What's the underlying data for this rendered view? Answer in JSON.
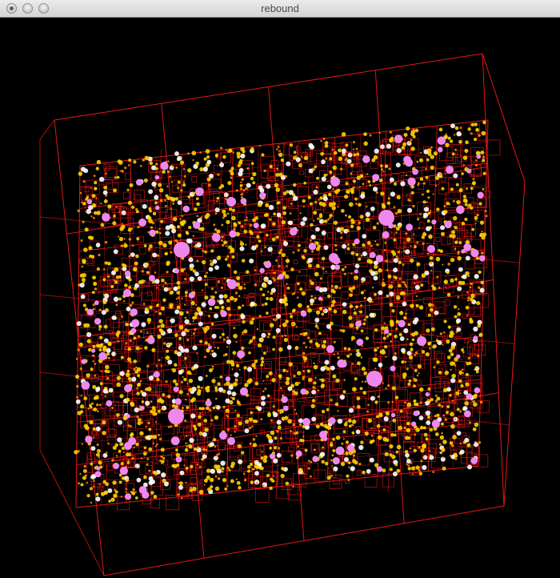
{
  "window": {
    "title": "rebound"
  },
  "colors": {
    "box": "#ff1a1a",
    "particle_hot": "#ffd000",
    "particle_core": "#ffffff",
    "particle_mid": "#ff8c00",
    "planetesimal": "#ee88ee",
    "background": "#000000"
  }
}
